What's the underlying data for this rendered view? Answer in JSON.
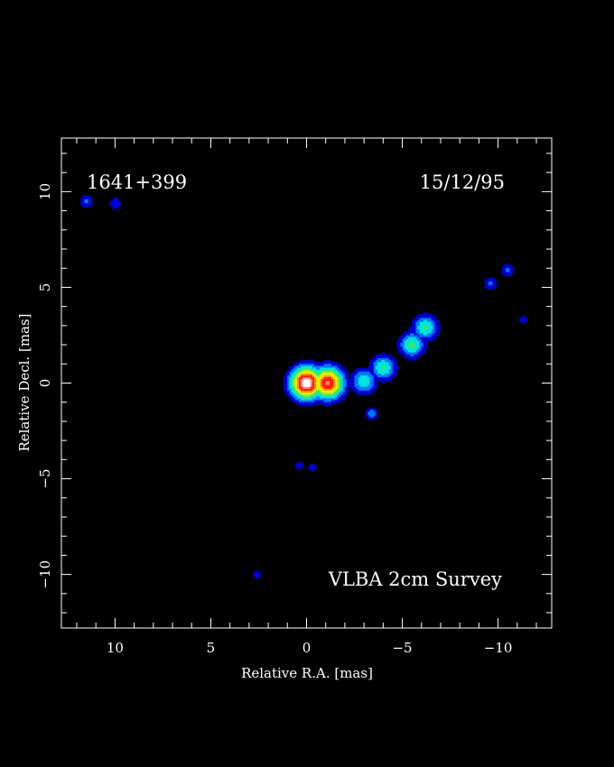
{
  "chart_data": {
    "type": "heatmap",
    "source_name": "1641+399",
    "epoch": "15/12/95",
    "survey_label": "VLBA 2cm Survey",
    "xlabel": "Relative R.A. [mas]",
    "ylabel": "Relative Decl. [mas]",
    "xlim": [
      12.8,
      -12.8
    ],
    "ylim": [
      -12.8,
      12.8
    ],
    "x_ticks": [
      10,
      5,
      0,
      -5,
      -10
    ],
    "y_ticks": [
      10,
      5,
      0,
      -5,
      -10
    ],
    "x_tick_labels": [
      "10",
      "5",
      "0",
      "−5",
      "−10"
    ],
    "y_tick_labels": [
      "10",
      "5",
      "0",
      "−5",
      "−10"
    ],
    "grid": false,
    "colormap": [
      "#0000c8",
      "#0078ff",
      "#00e1e1",
      "#32e678",
      "#a0f028",
      "#f0f000",
      "#ff8c00",
      "#ff1e00",
      "#ff8c8c",
      "#ffffff"
    ],
    "components": [
      {
        "name": "core",
        "x": 0.0,
        "y": 0.0,
        "peak": 1.0
      },
      {
        "name": "core-secondary",
        "x": -1.1,
        "y": 0.0,
        "peak": 0.85
      },
      {
        "name": "jet-knot-1",
        "x": -3.0,
        "y": 0.1,
        "peak": 0.35
      },
      {
        "name": "jet-knot-2",
        "x": -4.0,
        "y": 0.8,
        "peak": 0.38
      },
      {
        "name": "jet-knot-3",
        "x": -5.5,
        "y": 2.0,
        "peak": 0.4
      },
      {
        "name": "jet-knot-4",
        "x": -6.2,
        "y": 2.9,
        "peak": 0.38
      },
      {
        "name": "lower-feature",
        "x": -3.4,
        "y": -1.6,
        "peak": 0.25
      },
      {
        "name": "nw-feature-1",
        "x": -9.6,
        "y": 5.2,
        "peak": 0.22
      },
      {
        "name": "nw-feature-2",
        "x": -10.5,
        "y": 5.9,
        "peak": 0.22
      },
      {
        "name": "far-blob-1",
        "x": 11.5,
        "y": 9.5,
        "peak": 0.22
      },
      {
        "name": "far-blob-2",
        "x": 10.0,
        "y": 9.4,
        "peak": 0.18
      },
      {
        "name": "small-blob-1",
        "x": 0.4,
        "y": -4.3,
        "peak": 0.14
      },
      {
        "name": "small-blob-2",
        "x": -0.3,
        "y": -4.4,
        "peak": 0.12
      },
      {
        "name": "small-blob-3",
        "x": 2.6,
        "y": -10.0,
        "peak": 0.14
      },
      {
        "name": "small-blob-4",
        "x": -11.3,
        "y": 3.3,
        "peak": 0.12
      }
    ]
  }
}
